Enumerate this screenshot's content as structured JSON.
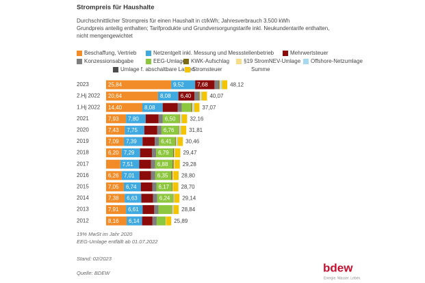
{
  "chart_data": {
    "type": "stacked-barh",
    "title": "Strompreis für Haushalte",
    "subtitle": [
      "Durchschnittlicher Strompreis für einen Haushalt in ct/kWh; Jahresverbrauch 3.500 kWh",
      "Grundpreis anteilig enthalten; Tarifprodukte und Grundversorgungstarife inkl. Neukundentarife enthalten,",
      "nicht mengengewichtet"
    ],
    "categories": [
      "2023",
      "2.Hj 2022",
      "1.Hj 2022",
      "2021",
      "2020",
      "2019",
      "2018",
      "2017",
      "2016",
      "2015",
      "2014",
      "2013",
      "2012"
    ],
    "series": [
      {
        "name": "Beschaffung, Vertrieb",
        "color": "#f28c28",
        "values": [
          25.84,
          20.64,
          14.4,
          7.93,
          7.43,
          7.09,
          6.2,
          5.67,
          6.26,
          7.05,
          7.38,
          7.91,
          8.16
        ],
        "value_labels": [
          "25,84",
          "20,64",
          "14,40",
          "7,93",
          "7,43",
          "7,09",
          "6,20",
          null,
          "6,26",
          "7,05",
          "7,38",
          "7,91",
          "8,16"
        ]
      },
      {
        "name": "Netzentgelt inkl. Messung und Messstellenbetrieb",
        "color": "#3fa9e0",
        "values": [
          9.52,
          8.08,
          8.08,
          7.8,
          7.75,
          7.39,
          7.29,
          7.51,
          7.01,
          6.74,
          6.63,
          6.61,
          6.14
        ],
        "value_labels": [
          "9,52",
          "8,08",
          "8,08",
          "7,80",
          "7,75",
          "7,39",
          "7,29",
          "7,51",
          "7,01",
          "6,74",
          "6,63",
          "6,61",
          "6,14"
        ]
      },
      {
        "name": "Mehrwertsteuer",
        "color": "#8b0a0a",
        "values": [
          7.68,
          6.4,
          5.92,
          5.13,
          5.15,
          4.86,
          4.71,
          4.68,
          4.6,
          4.58,
          4.65,
          4.6,
          4.13
        ],
        "value_labels": [
          "7,68",
          "6,40",
          null,
          null,
          null,
          null,
          null,
          null,
          null,
          null,
          null,
          null,
          null
        ]
      },
      {
        "name": "Konzessionsabgabe",
        "color": "#7f7f7f",
        "values": [
          1.66,
          1.66,
          1.66,
          1.66,
          1.66,
          1.66,
          1.66,
          1.66,
          1.66,
          1.61,
          1.66,
          1.66,
          1.66
        ]
      },
      {
        "name": "EEG-Umlage*",
        "color": "#8dc63f",
        "values": [
          0,
          0,
          3.72,
          6.5,
          6.76,
          6.41,
          6.79,
          6.88,
          6.35,
          6.17,
          6.24,
          5.28,
          3.59
        ],
        "value_labels": [
          null,
          null,
          null,
          "6,50",
          "6,76",
          "6,41",
          "6,79",
          "6,88",
          "6,35",
          "6,17",
          "6,24",
          null,
          null
        ]
      },
      {
        "name": "KWK-Aufschlag",
        "color": "#7a6a1a",
        "values": [
          0.36,
          0.38,
          0.38,
          0.25,
          0.23,
          0.28,
          0.35,
          0.44,
          0.45,
          0.25,
          0.18,
          0.15,
          0.0
        ]
      },
      {
        "name": "§19 StromNEV-Umlage",
        "color": "#f7dc8a",
        "values": [
          0.42,
          0.44,
          0.44,
          0.43,
          0.36,
          0.31,
          0.37,
          0.39,
          0.38,
          0.24,
          0.09,
          0.33,
          0.15
        ]
      },
      {
        "name": "Offshore-Netzumlage",
        "color": "#a6d8f0",
        "values": [
          0.59,
          0.42,
          0.42,
          0.4,
          0.42,
          0.42,
          0.04,
          0,
          0.04,
          0,
          0.25,
          0.25,
          0
        ]
      },
      {
        "name": "Umlage f. abschaltbare Lasten",
        "color": "#4d4d4d",
        "values": [
          0,
          0,
          0,
          0.01,
          0.01,
          0.01,
          0.01,
          0.01,
          0,
          0.01,
          0.01,
          0,
          0
        ]
      },
      {
        "name": "Stromsteuer",
        "color": "#f5c400",
        "values": [
          2.05,
          2.05,
          2.05,
          2.05,
          2.05,
          2.05,
          2.05,
          2.05,
          2.05,
          2.05,
          2.05,
          2.05,
          2.05
        ]
      }
    ],
    "totals": {
      "name": "Summe",
      "values": [
        48.12,
        40.07,
        37.07,
        32.16,
        31.81,
        30.46,
        29.47,
        29.28,
        28.8,
        28.7,
        29.14,
        28.84,
        25.89
      ],
      "value_labels": [
        "48,12",
        "40,07",
        "37,07",
        "32,16",
        "31,81",
        "30,46",
        "29,47",
        "29,28",
        "28,80",
        "28,70",
        "29,14",
        "28,84",
        "25,89"
      ]
    },
    "notes": [
      "19% MwSt im Jahr 2020",
      "EEG-Umlage entfällt ab 01.07.2022"
    ],
    "stand": "Stand: 02/2023",
    "source": "Quelle: BDEW",
    "logo": "bdew",
    "tagline": "Energie. Wasser. Leben."
  }
}
